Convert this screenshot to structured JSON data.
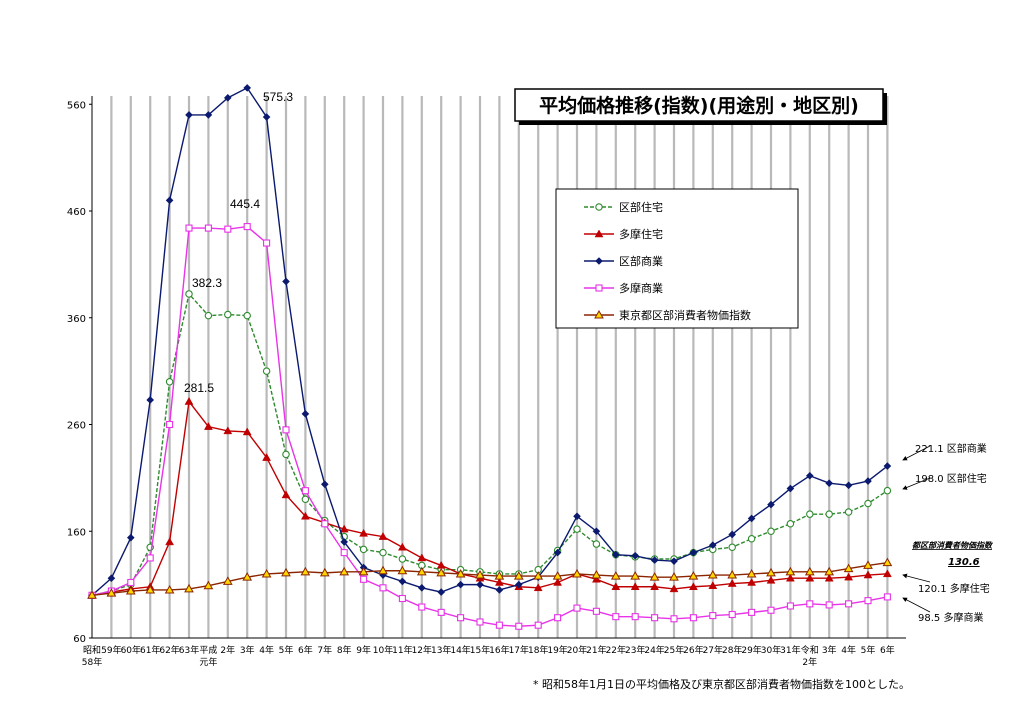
{
  "chart_data": {
    "type": "line",
    "title": "平均価格推移(指数)(用途別・地区別)",
    "ylim": [
      60,
      570
    ],
    "yticks": [
      60,
      160,
      260,
      360,
      460,
      560
    ],
    "grid": "vertical",
    "legend_position": "top-right",
    "categories": [
      [
        "昭和",
        "58年"
      ],
      [
        "59年"
      ],
      [
        "60年"
      ],
      [
        "61年"
      ],
      [
        "62年"
      ],
      [
        "63年"
      ],
      [
        "平成",
        "元年"
      ],
      [
        "2年"
      ],
      [
        "3年"
      ],
      [
        "4年"
      ],
      [
        "5年"
      ],
      [
        "6年"
      ],
      [
        "7年"
      ],
      [
        "8年"
      ],
      [
        "9年"
      ],
      [
        "10年"
      ],
      [
        "11年"
      ],
      [
        "12年"
      ],
      [
        "13年"
      ],
      [
        "14年"
      ],
      [
        "15年"
      ],
      [
        "16年"
      ],
      [
        "17年"
      ],
      [
        "18年"
      ],
      [
        "19年"
      ],
      [
        "20年"
      ],
      [
        "21年"
      ],
      [
        "22年"
      ],
      [
        "23年"
      ],
      [
        "24年"
      ],
      [
        "25年"
      ],
      [
        "26年"
      ],
      [
        "27年"
      ],
      [
        "28年"
      ],
      [
        "29年"
      ],
      [
        "30年"
      ],
      [
        "31年"
      ],
      [
        "令和",
        "2年"
      ],
      [
        "3年"
      ],
      [
        "4年"
      ],
      [
        "5年"
      ],
      [
        "6年"
      ]
    ],
    "series": [
      {
        "name": "区部住宅",
        "color": "#2e8b2e",
        "marker": "circle-open",
        "dash": true,
        "values": [
          100,
          104,
          110,
          145,
          300,
          382.3,
          362,
          363,
          362,
          310,
          232,
          190,
          170,
          155,
          143,
          140,
          134,
          128,
          124,
          124,
          122,
          120,
          120,
          124,
          142,
          162,
          148,
          138,
          136,
          134,
          134,
          140,
          143,
          145,
          153,
          160,
          167,
          176,
          176,
          178,
          186,
          198.0
        ]
      },
      {
        "name": "多摩住宅",
        "color": "#c00000",
        "marker": "triangle",
        "values": [
          100,
          103,
          106,
          108,
          150,
          281.5,
          258,
          254,
          253,
          229,
          194,
          174,
          168,
          162,
          158,
          155,
          145,
          135,
          128,
          120,
          116,
          112,
          108,
          107,
          112,
          120,
          115,
          108,
          108,
          108,
          106,
          108,
          109,
          111,
          112,
          114,
          116,
          116,
          116,
          117,
          119,
          120.1
        ]
      },
      {
        "name": "区部商業",
        "color": "#0b1a6e",
        "marker": "diamond",
        "values": [
          100,
          116,
          154,
          283,
          470,
          550,
          550,
          566,
          575.3,
          548,
          394,
          270,
          204,
          150,
          126,
          119,
          113,
          107,
          103,
          110,
          110,
          105,
          110,
          117,
          140,
          174,
          160,
          138,
          137,
          133,
          132,
          140,
          147,
          157,
          172,
          185,
          200,
          212,
          205,
          203,
          207,
          221.1
        ]
      },
      {
        "name": "多摩商業",
        "color": "#e833e8",
        "marker": "square-open",
        "values": [
          100,
          104,
          112,
          135,
          260,
          444,
          444,
          443,
          445.4,
          430,
          255,
          198,
          167,
          140,
          115,
          107,
          97,
          89,
          84,
          79,
          75,
          72,
          71,
          72,
          79,
          88,
          85,
          80,
          80,
          79,
          78,
          79,
          81,
          82,
          84,
          86,
          90,
          92,
          91,
          92,
          95,
          98.5
        ]
      },
      {
        "name": "東京都区部消費者物価指数",
        "color": "#8b2500",
        "marker": "triangle-yellow",
        "values": [
          100,
          102,
          104,
          105,
          105,
          106,
          109,
          113,
          117,
          120,
          121,
          122,
          121,
          122,
          122,
          123,
          123,
          122,
          121,
          120,
          119,
          118,
          118,
          118,
          118,
          120,
          119,
          118,
          118,
          117,
          117,
          118,
          119,
          119,
          120,
          121,
          122,
          122,
          122,
          125,
          128,
          130.6
        ]
      }
    ],
    "peak_labels": [
      "575.3",
      "445.4",
      "382.3",
      "281.5"
    ],
    "end_labels": {
      "kubu_shogyo": "221.1 区部商業",
      "kubu_jutaku": "198.0 区部住宅",
      "cpi_title": "都区部消費者物価指数",
      "cpi_value": "130.6",
      "tama_jutaku": "120.1 多摩住宅",
      "tama_shogyo": "98.5 多摩商業"
    },
    "footnote": "* 昭和58年1月1日の平均価格及び東京都区部消費者物価指数を100とした。"
  }
}
